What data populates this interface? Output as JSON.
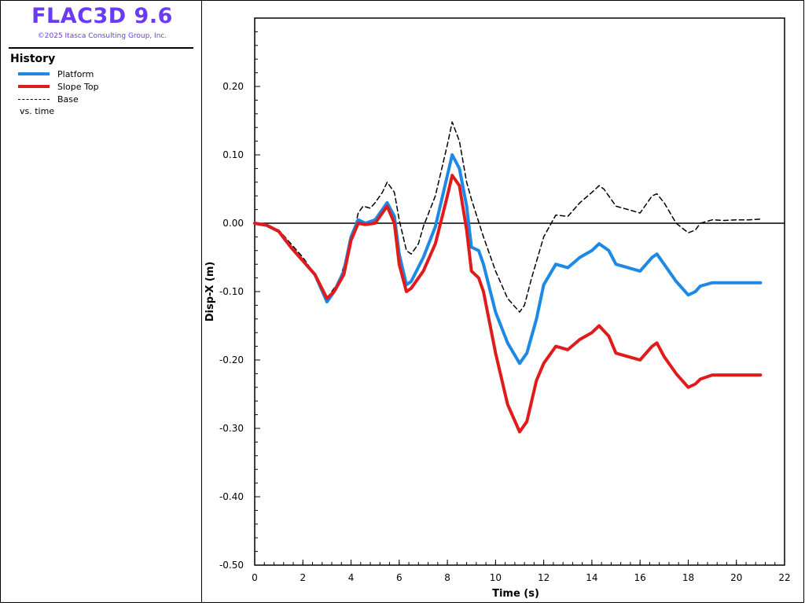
{
  "app": {
    "title": "FLAC3D 9.6",
    "copyright": "©2025 Itasca Consulting Group, Inc.",
    "title_color": "#6a3bf2"
  },
  "legend": {
    "heading": "History",
    "items": [
      {
        "label": "Platform",
        "color": "#1e88e5",
        "style": "solid"
      },
      {
        "label": "Slope Top",
        "color": "#e01b1b",
        "style": "solid"
      },
      {
        "label": "Base",
        "color": "#000000",
        "style": "dashed"
      }
    ],
    "footer": "vs. time"
  },
  "chart_data": {
    "type": "line",
    "xlabel": "Time (s)",
    "ylabel": "Disp-X (m)",
    "xlim": [
      0,
      22
    ],
    "ylim": [
      -0.5,
      0.3
    ],
    "x_ticks": [
      0,
      2,
      4,
      6,
      8,
      10,
      12,
      14,
      16,
      18,
      20,
      22
    ],
    "y_ticks": [
      {
        "value": 0.2,
        "label": "0.20"
      },
      {
        "value": 0.1,
        "label": "0.10"
      },
      {
        "value": 0.0,
        "label": "0.00"
      },
      {
        "value": -0.1,
        "label": "-0.10"
      },
      {
        "value": -0.2,
        "label": "-0.20"
      },
      {
        "value": -0.3,
        "label": "-0.30"
      },
      {
        "value": -0.4,
        "label": "-0.40"
      },
      {
        "value": -0.5,
        "label": "-0.50"
      }
    ],
    "zero_line": true,
    "grid": false,
    "series": [
      {
        "name": "Base",
        "color": "#000000",
        "style": "dashed",
        "x": [
          0,
          0.5,
          1,
          1.5,
          2,
          2.5,
          3,
          3.5,
          4,
          4.3,
          4.5,
          4.8,
          5,
          5.3,
          5.5,
          5.8,
          6,
          6.3,
          6.5,
          6.8,
          7,
          7.5,
          8,
          8.2,
          8.5,
          8.8,
          9,
          9.5,
          10,
          10.5,
          11,
          11.2,
          11.5,
          12,
          12.5,
          13,
          13.5,
          14,
          14.3,
          14.5,
          15,
          15.5,
          16,
          16.5,
          16.7,
          17,
          17.5,
          18,
          18.3,
          18.5,
          19,
          19.5,
          20,
          20.5,
          21
        ],
        "y": [
          0,
          -0.002,
          -0.01,
          -0.03,
          -0.05,
          -0.075,
          -0.11,
          -0.085,
          -0.03,
          0.015,
          0.025,
          0.022,
          0.03,
          0.045,
          0.06,
          0.045,
          0.005,
          -0.04,
          -0.045,
          -0.03,
          -0.005,
          0.04,
          0.115,
          0.148,
          0.12,
          0.06,
          0.035,
          -0.02,
          -0.07,
          -0.11,
          -0.13,
          -0.12,
          -0.08,
          -0.02,
          0.012,
          0.01,
          0.03,
          0.045,
          0.055,
          0.05,
          0.025,
          0.02,
          0.015,
          0.04,
          0.043,
          0.03,
          0.0,
          -0.014,
          -0.01,
          0.0,
          0.005,
          0.004,
          0.005,
          0.005,
          0.006
        ]
      },
      {
        "name": "Platform",
        "color": "#1e88e5",
        "style": "solid",
        "x": [
          0,
          0.5,
          1,
          1.5,
          2,
          2.5,
          3,
          3.3,
          3.7,
          4,
          4.3,
          4.6,
          5,
          5.3,
          5.5,
          5.8,
          6,
          6.3,
          6.5,
          7,
          7.5,
          8,
          8.2,
          8.5,
          8.8,
          9,
          9.3,
          9.5,
          10,
          10.5,
          11,
          11.3,
          11.7,
          12,
          12.5,
          13,
          13.5,
          14,
          14.3,
          14.7,
          15,
          15.5,
          16,
          16.5,
          16.7,
          17,
          17.5,
          18,
          18.3,
          18.5,
          19,
          19.5,
          20,
          20.5,
          21
        ],
        "y": [
          0,
          -0.003,
          -0.012,
          -0.035,
          -0.055,
          -0.075,
          -0.115,
          -0.1,
          -0.07,
          -0.02,
          0.005,
          0.0,
          0.005,
          0.02,
          0.03,
          0.01,
          -0.045,
          -0.09,
          -0.085,
          -0.05,
          -0.005,
          0.07,
          0.1,
          0.08,
          0.025,
          -0.035,
          -0.04,
          -0.06,
          -0.13,
          -0.175,
          -0.205,
          -0.19,
          -0.14,
          -0.09,
          -0.06,
          -0.065,
          -0.05,
          -0.04,
          -0.03,
          -0.04,
          -0.06,
          -0.065,
          -0.07,
          -0.05,
          -0.045,
          -0.06,
          -0.085,
          -0.105,
          -0.1,
          -0.092,
          -0.087,
          -0.087,
          -0.087,
          -0.087,
          -0.087
        ]
      },
      {
        "name": "Slope Top",
        "color": "#e01b1b",
        "style": "solid",
        "x": [
          0,
          0.5,
          1,
          1.5,
          2,
          2.5,
          3,
          3.3,
          3.7,
          4,
          4.3,
          4.6,
          5,
          5.3,
          5.5,
          5.8,
          6,
          6.3,
          6.5,
          7,
          7.5,
          8,
          8.2,
          8.5,
          8.8,
          9,
          9.3,
          9.5,
          10,
          10.5,
          11,
          11.3,
          11.7,
          12,
          12.5,
          13,
          13.5,
          14,
          14.3,
          14.7,
          15,
          15.5,
          16,
          16.5,
          16.7,
          17,
          17.5,
          18,
          18.3,
          18.5,
          19,
          19.5,
          20,
          20.5,
          21
        ],
        "y": [
          0,
          -0.003,
          -0.012,
          -0.035,
          -0.055,
          -0.075,
          -0.11,
          -0.1,
          -0.075,
          -0.025,
          0.0,
          -0.002,
          0.0,
          0.015,
          0.025,
          0.0,
          -0.06,
          -0.1,
          -0.095,
          -0.07,
          -0.03,
          0.04,
          0.07,
          0.055,
          -0.01,
          -0.07,
          -0.08,
          -0.1,
          -0.19,
          -0.265,
          -0.305,
          -0.29,
          -0.23,
          -0.205,
          -0.18,
          -0.185,
          -0.17,
          -0.16,
          -0.15,
          -0.165,
          -0.19,
          -0.195,
          -0.2,
          -0.18,
          -0.175,
          -0.195,
          -0.22,
          -0.24,
          -0.235,
          -0.228,
          -0.222,
          -0.222,
          -0.222,
          -0.222,
          -0.222
        ]
      }
    ]
  }
}
